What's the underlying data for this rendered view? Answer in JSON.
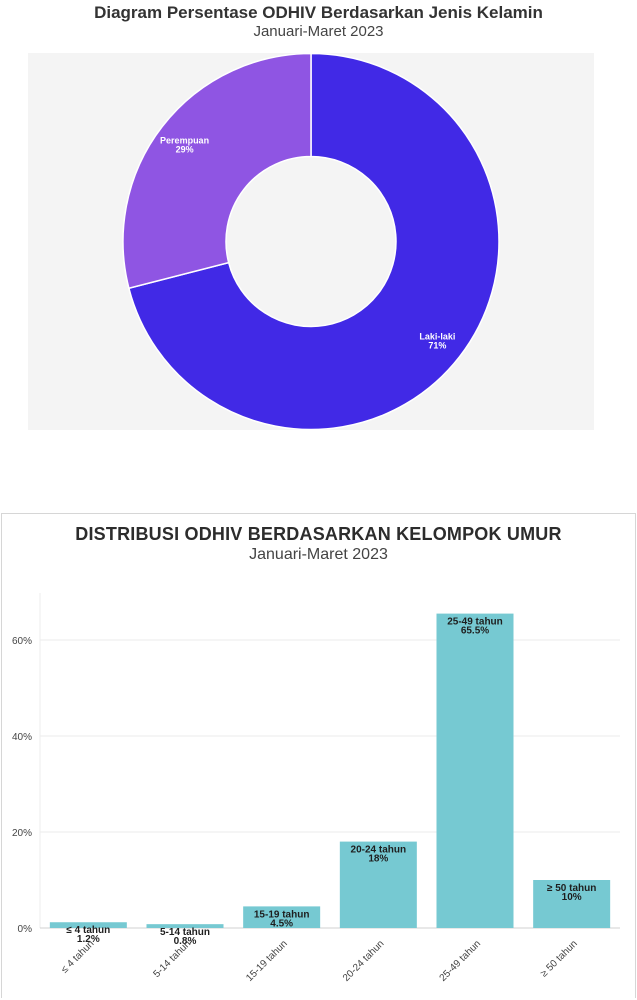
{
  "charts": {
    "gender": {
      "title": "Diagram Persentase ODHIV Berdasarkan Jenis Kelamin",
      "subtitle": "Januari-Maret 2023"
    },
    "age": {
      "title": "DISTRIBUSI ODHIV BERDASARKAN KELOMPOK UMUR",
      "subtitle": "Januari-Maret 2023"
    }
  },
  "chart_data": [
    {
      "type": "pie",
      "variant": "donut",
      "title": "Diagram Persentase ODHIV Berdasarkan Jenis Kelamin",
      "subtitle": "Januari-Maret 2023",
      "slices": [
        {
          "label": "Laki-laki",
          "value": 71,
          "value_label": "71%",
          "color": "#4129e6"
        },
        {
          "label": "Perempuan",
          "value": 29,
          "value_label": "29%",
          "color": "#8f55e3"
        }
      ],
      "plot_background": "#f4f4f4"
    },
    {
      "type": "bar",
      "title": "DISTRIBUSI ODHIV BERDASARKAN KELOMPOK UMUR",
      "subtitle": "Januari-Maret 2023",
      "categories": [
        "≤ 4 tahun",
        "5-14 tahun",
        "15-19 tahun",
        "20-24 tahun",
        "25-49 tahun",
        "≥ 50 tahun"
      ],
      "values": [
        1.2,
        0.8,
        4.5,
        18,
        65.5,
        10
      ],
      "value_labels": [
        "1.2%",
        "0.8%",
        "4.5%",
        "18%",
        "65.5%",
        "10%"
      ],
      "y_ticks": [
        0,
        20,
        40,
        60
      ],
      "y_tick_labels": [
        "0%",
        "20%",
        "40%",
        "60%"
      ],
      "ylim": [
        0,
        70
      ],
      "bar_color": "#76c9d2",
      "grid": true,
      "legend": "none"
    }
  ]
}
